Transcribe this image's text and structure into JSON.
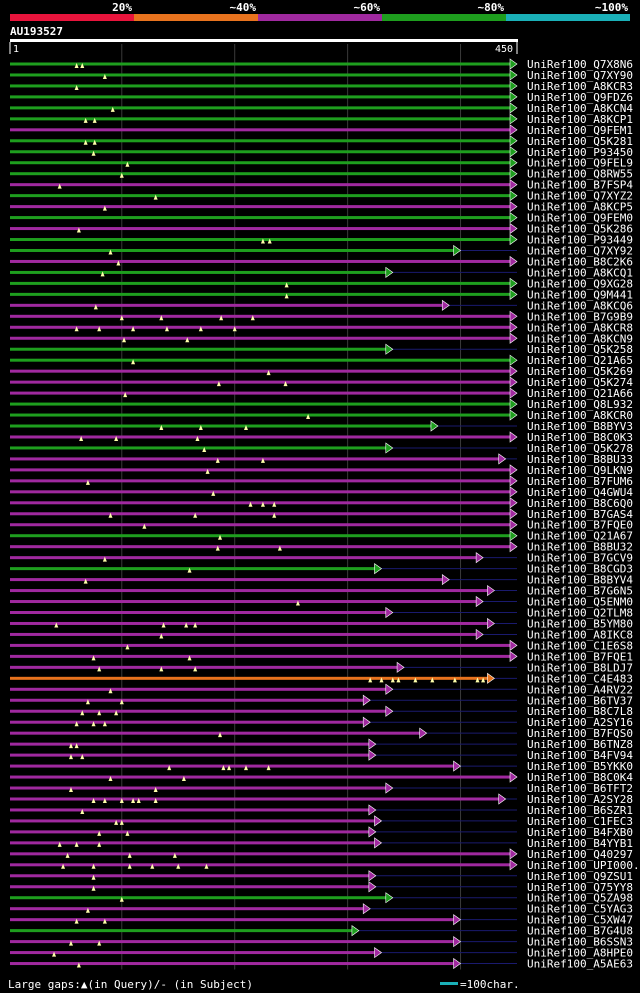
{
  "query": {
    "id": "AU193527",
    "start_label": "1",
    "end_label": "450",
    "length": 450
  },
  "legend_scale": [
    {
      "label": "20%",
      "color": "#e8143c"
    },
    {
      "label": "~40%",
      "color": "#e8731e"
    },
    {
      "label": "~60%",
      "color": "#a0299f"
    },
    {
      "label": "~80%",
      "color": "#1e9e1e"
    },
    {
      "label": "~100%",
      "color": "#1ab0b8"
    }
  ],
  "footer": {
    "gaps_text": "Large gaps:▲(in Query)/- (in Subject)",
    "scale_text": "=100char.",
    "scale_color": "#1ab0b8"
  },
  "chart_data": {
    "type": "alignment",
    "x_unit": "query residue",
    "xlim": [
      1,
      450
    ],
    "grid_every": 100,
    "hits": [
      {
        "name": "UniRef100_Q7X8N6",
        "qs": 1,
        "qe": 450,
        "color": "#1e9e1e",
        "gaps": [
          60,
          65
        ]
      },
      {
        "name": "UniRef100_Q7XY90",
        "qs": 1,
        "qe": 450,
        "color": "#1e9e1e",
        "gaps": [
          85
        ]
      },
      {
        "name": "UniRef100_A8KCR3",
        "qs": 1,
        "qe": 450,
        "color": "#1e9e1e",
        "gaps": [
          60
        ]
      },
      {
        "name": "UniRef100_Q9FDZ6",
        "qs": 1,
        "qe": 450,
        "color": "#1e9e1e",
        "gaps": []
      },
      {
        "name": "UniRef100_A8KCN4",
        "qs": 1,
        "qe": 450,
        "color": "#1e9e1e",
        "gaps": [
          92
        ]
      },
      {
        "name": "UniRef100_A8KCP1",
        "qs": 1,
        "qe": 450,
        "color": "#1e9e1e",
        "gaps": [
          68,
          76
        ]
      },
      {
        "name": "UniRef100_Q9FEM1",
        "qs": 1,
        "qe": 450,
        "color": "#a0299f",
        "gaps": []
      },
      {
        "name": "UniRef100_Q5K281",
        "qs": 1,
        "qe": 450,
        "color": "#1e9e1e",
        "gaps": [
          68,
          76
        ]
      },
      {
        "name": "UniRef100_P93450",
        "qs": 1,
        "qe": 450,
        "color": "#1e9e1e",
        "gaps": [
          75
        ]
      },
      {
        "name": "UniRef100_Q9FEL9",
        "qs": 1,
        "qe": 450,
        "color": "#1e9e1e",
        "gaps": [
          105
        ]
      },
      {
        "name": "UniRef100_Q8RW55",
        "qs": 1,
        "qe": 450,
        "color": "#1e9e1e",
        "gaps": [
          100
        ]
      },
      {
        "name": "UniRef100_B7FSP4",
        "qs": 1,
        "qe": 450,
        "color": "#a0299f",
        "gaps": [
          45
        ]
      },
      {
        "name": "UniRef100_Q7XYZ2",
        "qs": 1,
        "qe": 450,
        "color": "#1e9e1e",
        "gaps": [
          130
        ]
      },
      {
        "name": "UniRef100_A8KCP5",
        "qs": 1,
        "qe": 450,
        "color": "#a0299f",
        "gaps": [
          85
        ]
      },
      {
        "name": "UniRef100_Q9FEM0",
        "qs": 1,
        "qe": 450,
        "color": "#1e9e1e",
        "gaps": []
      },
      {
        "name": "UniRef100_Q5K286",
        "qs": 1,
        "qe": 450,
        "color": "#a0299f",
        "gaps": [
          62
        ]
      },
      {
        "name": "UniRef100_P93449",
        "qs": 1,
        "qe": 450,
        "color": "#1e9e1e",
        "gaps": [
          225,
          231
        ]
      },
      {
        "name": "UniRef100_Q7XY92",
        "qs": 1,
        "qe": 400,
        "color": "#1e9e1e",
        "gaps": [
          90
        ]
      },
      {
        "name": "UniRef100_B8C2K6",
        "qs": 1,
        "qe": 450,
        "color": "#a0299f",
        "gaps": [
          97
        ]
      },
      {
        "name": "UniRef100_A8KCQ1",
        "qs": 1,
        "qe": 340,
        "color": "#1e9e1e",
        "gaps": [
          83
        ]
      },
      {
        "name": "UniRef100_Q9XG28",
        "qs": 1,
        "qe": 450,
        "color": "#1e9e1e",
        "gaps": [
          246
        ]
      },
      {
        "name": "UniRef100_Q9M441",
        "qs": 1,
        "qe": 450,
        "color": "#1e9e1e",
        "gaps": [
          246
        ]
      },
      {
        "name": "UniRef100_A8KCQ6",
        "qs": 1,
        "qe": 390,
        "color": "#a0299f",
        "gaps": [
          77
        ]
      },
      {
        "name": "UniRef100_B7G9B9",
        "qs": 1,
        "qe": 450,
        "color": "#a0299f",
        "gaps": [
          100,
          135,
          188,
          216
        ]
      },
      {
        "name": "UniRef100_A8KCR8",
        "qs": 1,
        "qe": 450,
        "color": "#a0299f",
        "gaps": [
          60,
          80,
          110,
          140,
          170,
          200
        ]
      },
      {
        "name": "UniRef100_A8KCN9",
        "qs": 1,
        "qe": 450,
        "color": "#a0299f",
        "gaps": [
          102,
          158
        ]
      },
      {
        "name": "UniRef100_Q5K258",
        "qs": 1,
        "qe": 340,
        "color": "#1e9e1e",
        "gaps": []
      },
      {
        "name": "UniRef100_Q21A65",
        "qs": 1,
        "qe": 450,
        "color": "#1e9e1e",
        "gaps": [
          110
        ]
      },
      {
        "name": "UniRef100_Q5K269",
        "qs": 1,
        "qe": 450,
        "color": "#a0299f",
        "gaps": [
          230
        ]
      },
      {
        "name": "UniRef100_Q5K274",
        "qs": 1,
        "qe": 450,
        "color": "#a0299f",
        "gaps": [
          186,
          245
        ]
      },
      {
        "name": "UniRef100_Q21A66",
        "qs": 1,
        "qe": 450,
        "color": "#a0299f",
        "gaps": [
          103
        ]
      },
      {
        "name": "UniRef100_Q8L932",
        "qs": 1,
        "qe": 450,
        "color": "#1e9e1e",
        "gaps": []
      },
      {
        "name": "UniRef100_A8KCR0",
        "qs": 1,
        "qe": 450,
        "color": "#1e9e1e",
        "gaps": [
          265
        ]
      },
      {
        "name": "UniRef100_B8BYV3",
        "qs": 1,
        "qe": 380,
        "color": "#1e9e1e",
        "gaps": [
          135,
          170,
          210
        ]
      },
      {
        "name": "UniRef100_B8C0K3",
        "qs": 1,
        "qe": 450,
        "color": "#a0299f",
        "gaps": [
          64,
          95,
          167
        ]
      },
      {
        "name": "UniRef100_Q5K278",
        "qs": 1,
        "qe": 340,
        "color": "#1e9e1e",
        "gaps": [
          173
        ]
      },
      {
        "name": "UniRef100_B8BU33",
        "qs": 1,
        "qe": 440,
        "color": "#a0299f",
        "gaps": [
          185,
          225
        ]
      },
      {
        "name": "UniRef100_Q9LKN9",
        "qs": 1,
        "qe": 450,
        "color": "#a0299f",
        "gaps": [
          176
        ]
      },
      {
        "name": "UniRef100_B7FUM6",
        "qs": 1,
        "qe": 450,
        "color": "#a0299f",
        "gaps": [
          70
        ]
      },
      {
        "name": "UniRef100_Q4GWU4",
        "qs": 1,
        "qe": 450,
        "color": "#a0299f",
        "gaps": [
          181
        ]
      },
      {
        "name": "UniRef100_B8C6Q0",
        "qs": 1,
        "qe": 450,
        "color": "#a0299f",
        "gaps": [
          214,
          225,
          235
        ]
      },
      {
        "name": "UniRef100_B7GAS4",
        "qs": 1,
        "qe": 450,
        "color": "#a0299f",
        "gaps": [
          90,
          165,
          235
        ]
      },
      {
        "name": "UniRef100_B7FQE0",
        "qs": 1,
        "qe": 450,
        "color": "#a0299f",
        "gaps": [
          120
        ]
      },
      {
        "name": "UniRef100_Q21A67",
        "qs": 1,
        "qe": 450,
        "color": "#1e9e1e",
        "gaps": [
          187
        ]
      },
      {
        "name": "UniRef100_B8BU32",
        "qs": 1,
        "qe": 450,
        "color": "#a0299f",
        "gaps": [
          185,
          240
        ]
      },
      {
        "name": "UniRef100_B7GCV9",
        "qs": 1,
        "qe": 420,
        "color": "#a0299f",
        "gaps": [
          85
        ]
      },
      {
        "name": "UniRef100_B8CGD3",
        "qs": 1,
        "qe": 330,
        "color": "#1e9e1e",
        "gaps": [
          160
        ]
      },
      {
        "name": "UniRef100_B8BYV4",
        "qs": 1,
        "qe": 390,
        "color": "#a0299f",
        "gaps": [
          68
        ]
      },
      {
        "name": "UniRef100_B7G6N5",
        "qs": 1,
        "qe": 430,
        "color": "#a0299f",
        "gaps": []
      },
      {
        "name": "UniRef100_Q5ENM0",
        "qs": 1,
        "qe": 420,
        "color": "#a0299f",
        "gaps": [
          256
        ]
      },
      {
        "name": "UniRef100_Q2TLM8",
        "qs": 1,
        "qe": 340,
        "color": "#a0299f",
        "gaps": []
      },
      {
        "name": "UniRef100_B5YM80",
        "qs": 1,
        "qe": 430,
        "color": "#a0299f",
        "gaps": [
          42,
          137,
          157,
          165
        ]
      },
      {
        "name": "UniRef100_A8IKC8",
        "qs": 1,
        "qe": 420,
        "color": "#a0299f",
        "gaps": [
          135
        ]
      },
      {
        "name": "UniRef100_C1E6S8",
        "qs": 1,
        "qe": 450,
        "color": "#a0299f",
        "gaps": [
          105
        ]
      },
      {
        "name": "UniRef100_B7FQE1",
        "qs": 1,
        "qe": 450,
        "color": "#a0299f",
        "gaps": [
          75,
          160
        ]
      },
      {
        "name": "UniRef100_B8LDJ7",
        "qs": 1,
        "qe": 350,
        "color": "#a0299f",
        "gaps": [
          80,
          135,
          165
        ]
      },
      {
        "name": "UniRef100_C4E483",
        "qs": 1,
        "qe": 430,
        "color": "#e8731e",
        "gaps": [
          320,
          330,
          340,
          345,
          360,
          375,
          395,
          415,
          420
        ]
      },
      {
        "name": "UniRef100_A4RV22",
        "qs": 1,
        "qe": 340,
        "color": "#a0299f",
        "gaps": [
          90
        ]
      },
      {
        "name": "UniRef100_B6TV37",
        "qs": 1,
        "qe": 320,
        "color": "#a0299f",
        "gaps": [
          70,
          100
        ]
      },
      {
        "name": "UniRef100_B8C7L8",
        "qs": 1,
        "qe": 340,
        "color": "#a0299f",
        "gaps": [
          65,
          80,
          95
        ]
      },
      {
        "name": "UniRef100_A2SY16",
        "qs": 1,
        "qe": 320,
        "color": "#a0299f",
        "gaps": [
          60,
          75,
          85
        ]
      },
      {
        "name": "UniRef100_B7FQS0",
        "qs": 1,
        "qe": 370,
        "color": "#a0299f",
        "gaps": [
          187
        ]
      },
      {
        "name": "UniRef100_B6TNZ8",
        "qs": 1,
        "qe": 325,
        "color": "#a0299f",
        "gaps": [
          55,
          60
        ]
      },
      {
        "name": "UniRef100_B4FV94",
        "qs": 1,
        "qe": 325,
        "color": "#a0299f",
        "gaps": [
          55,
          65
        ]
      },
      {
        "name": "UniRef100_B5YKK0",
        "qs": 1,
        "qe": 400,
        "color": "#a0299f",
        "gaps": [
          142,
          190,
          195,
          210,
          230
        ]
      },
      {
        "name": "UniRef100_B8C0K4",
        "qs": 1,
        "qe": 450,
        "color": "#a0299f",
        "gaps": [
          90,
          155
        ]
      },
      {
        "name": "UniRef100_B6TFT2",
        "qs": 1,
        "qe": 340,
        "color": "#a0299f",
        "gaps": [
          55,
          130
        ]
      },
      {
        "name": "UniRef100_A2SY28",
        "qs": 1,
        "qe": 440,
        "color": "#a0299f",
        "gaps": [
          75,
          85,
          100,
          110,
          115,
          130
        ]
      },
      {
        "name": "UniRef100_B6SZR1",
        "qs": 1,
        "qe": 325,
        "color": "#a0299f",
        "gaps": [
          65
        ]
      },
      {
        "name": "UniRef100_C1FEC3",
        "qs": 1,
        "qe": 330,
        "color": "#a0299f",
        "gaps": [
          95,
          100
        ]
      },
      {
        "name": "UniRef100_B4FXB0",
        "qs": 1,
        "qe": 325,
        "color": "#a0299f",
        "gaps": [
          80,
          105
        ]
      },
      {
        "name": "UniRef100_B4YYB1",
        "qs": 1,
        "qe": 330,
        "color": "#a0299f",
        "gaps": [
          45,
          60,
          80
        ]
      },
      {
        "name": "UniRef100_Q40297",
        "qs": 1,
        "qe": 450,
        "color": "#a0299f",
        "gaps": [
          52,
          107,
          147
        ]
      },
      {
        "name": "UniRef100_UPI000...",
        "qs": 1,
        "qe": 450,
        "color": "#a0299f",
        "gaps": [
          48,
          75,
          107,
          127,
          150,
          175
        ]
      },
      {
        "name": "UniRef100_Q9ZSU1",
        "qs": 1,
        "qe": 325,
        "color": "#a0299f",
        "gaps": [
          75
        ]
      },
      {
        "name": "UniRef100_Q75YY8",
        "qs": 1,
        "qe": 325,
        "color": "#a0299f",
        "gaps": [
          75
        ]
      },
      {
        "name": "UniRef100_Q5ZA98",
        "qs": 1,
        "qe": 340,
        "color": "#1e9e1e",
        "gaps": [
          100
        ]
      },
      {
        "name": "UniRef100_C5YAG3",
        "qs": 1,
        "qe": 320,
        "color": "#a0299f",
        "gaps": [
          70
        ]
      },
      {
        "name": "UniRef100_C5XW47",
        "qs": 1,
        "qe": 400,
        "color": "#a0299f",
        "gaps": [
          60,
          85
        ]
      },
      {
        "name": "UniRef100_B7G4U8",
        "qs": 1,
        "qe": 310,
        "color": "#1e9e1e",
        "gaps": []
      },
      {
        "name": "UniRef100_B6SSN3",
        "qs": 1,
        "qe": 400,
        "color": "#a0299f",
        "gaps": [
          55,
          80
        ]
      },
      {
        "name": "UniRef100_A8HPE0",
        "qs": 1,
        "qe": 330,
        "color": "#a0299f",
        "gaps": [
          40
        ]
      },
      {
        "name": "UniRef100_A5AE63",
        "qs": 1,
        "qe": 400,
        "color": "#a0299f",
        "gaps": [
          62
        ]
      }
    ]
  }
}
